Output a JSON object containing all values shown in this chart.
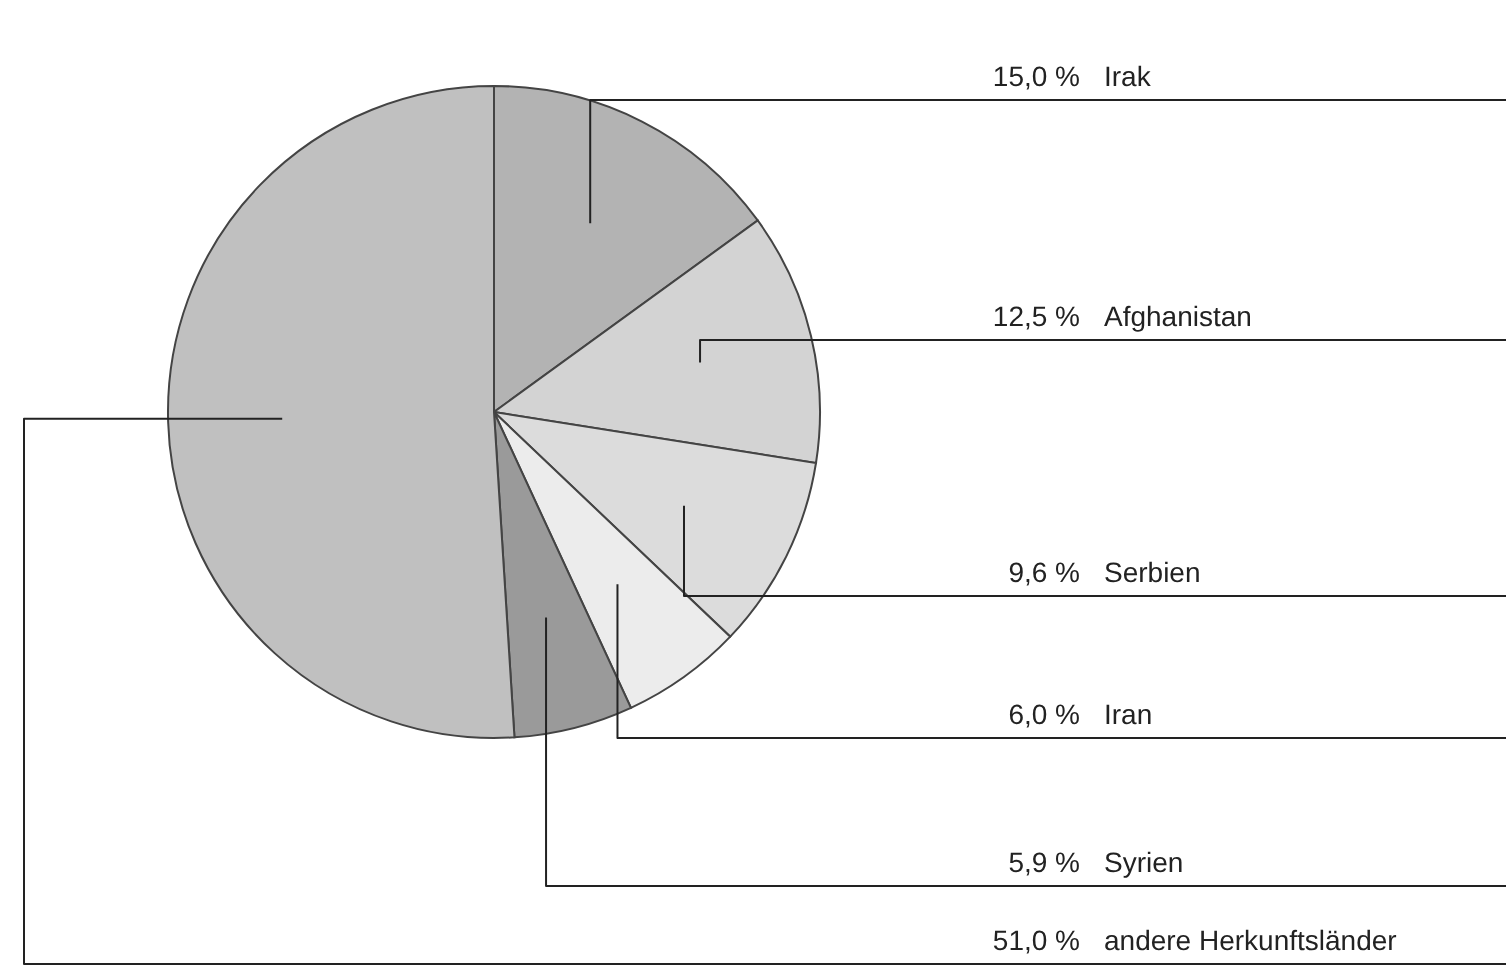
{
  "chart_data": {
    "type": "pie",
    "categories": [
      "Irak",
      "Afghanistan",
      "Serbien",
      "Iran",
      "Syrien",
      "andere Herkunftsländer"
    ],
    "values": [
      15.0,
      12.5,
      9.6,
      6.0,
      5.9,
      51.0
    ],
    "colors": [
      "#b3b3b3",
      "#d3d3d3",
      "#dcdcdc",
      "#ececec",
      "#9a9a9a",
      "#c0c0c0"
    ],
    "value_labels": [
      "15,0 %",
      "12,5 %",
      "9,6 %",
      "6,0 %",
      "5,9 %",
      "51,0 %"
    ]
  }
}
